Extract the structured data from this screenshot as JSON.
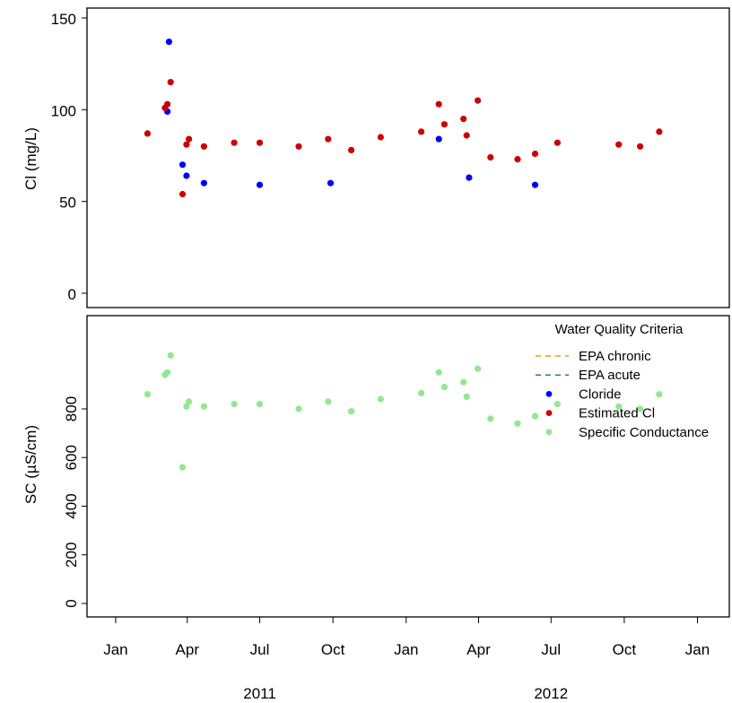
{
  "chart_data": [
    {
      "type": "scatter",
      "ylabel": "Cl (mg/L)",
      "ylim": [
        0,
        150
      ],
      "yticks": [
        0,
        50,
        100,
        150
      ],
      "series": [
        {
          "name": "Cloride",
          "color": "#0000ff",
          "points": [
            [
              "2011-03-07",
              99
            ],
            [
              "2011-03-09",
              137
            ],
            [
              "2011-03-26",
              70
            ],
            [
              "2011-03-31",
              64
            ],
            [
              "2011-04-22",
              60
            ],
            [
              "2011-07-01",
              59
            ],
            [
              "2011-09-28",
              60
            ],
            [
              "2012-02-11",
              84
            ],
            [
              "2012-03-20",
              63
            ],
            [
              "2012-06-11",
              59
            ]
          ]
        },
        {
          "name": "Estimated Cl",
          "color": "#cc0000",
          "points": [
            [
              "2011-02-10",
              87
            ],
            [
              "2011-03-04",
              101
            ],
            [
              "2011-03-07",
              103
            ],
            [
              "2011-03-11",
              115
            ],
            [
              "2011-03-26",
              54
            ],
            [
              "2011-03-31",
              81
            ],
            [
              "2011-04-03",
              84
            ],
            [
              "2011-04-22",
              80
            ],
            [
              "2011-05-30",
              82
            ],
            [
              "2011-07-01",
              82
            ],
            [
              "2011-08-19",
              80
            ],
            [
              "2011-09-25",
              84
            ],
            [
              "2011-10-24",
              78
            ],
            [
              "2011-11-30",
              85
            ],
            [
              "2012-01-20",
              88
            ],
            [
              "2012-02-11",
              103
            ],
            [
              "2012-02-18",
              92
            ],
            [
              "2012-03-13",
              95
            ],
            [
              "2012-03-17",
              86
            ],
            [
              "2012-03-31",
              105
            ],
            [
              "2012-04-16",
              74
            ],
            [
              "2012-05-20",
              73
            ],
            [
              "2012-06-11",
              76
            ],
            [
              "2012-07-09",
              82
            ],
            [
              "2012-09-24",
              81
            ],
            [
              "2012-10-21",
              80
            ],
            [
              "2012-11-14",
              88
            ]
          ]
        }
      ]
    },
    {
      "type": "scatter",
      "ylabel": "SC (µS/cm)",
      "ylim": [
        0,
        1000
      ],
      "yticks": [
        0,
        200,
        400,
        600,
        800
      ],
      "series": [
        {
          "name": "Specific Conductance",
          "color": "#90e890",
          "points": [
            [
              "2011-02-10",
              860
            ],
            [
              "2011-03-04",
              940
            ],
            [
              "2011-03-07",
              950
            ],
            [
              "2011-03-11",
              1020
            ],
            [
              "2011-03-26",
              560
            ],
            [
              "2011-03-31",
              810
            ],
            [
              "2011-04-03",
              830
            ],
            [
              "2011-04-22",
              810
            ],
            [
              "2011-05-30",
              820
            ],
            [
              "2011-07-01",
              820
            ],
            [
              "2011-08-19",
              800
            ],
            [
              "2011-09-25",
              830
            ],
            [
              "2011-10-24",
              790
            ],
            [
              "2011-11-30",
              840
            ],
            [
              "2012-01-20",
              865
            ],
            [
              "2012-02-11",
              950
            ],
            [
              "2012-02-18",
              890
            ],
            [
              "2012-03-13",
              910
            ],
            [
              "2012-03-17",
              850
            ],
            [
              "2012-03-31",
              965
            ],
            [
              "2012-04-16",
              760
            ],
            [
              "2012-05-20",
              740
            ],
            [
              "2012-06-11",
              770
            ],
            [
              "2012-07-09",
              820
            ],
            [
              "2012-09-24",
              810
            ],
            [
              "2012-10-21",
              800
            ],
            [
              "2012-11-14",
              860
            ]
          ]
        }
      ],
      "legend": {
        "title": "Water Quality Criteria",
        "position": "top-right",
        "entries": [
          {
            "label": "EPA chronic",
            "kind": "dashed-line",
            "color": "#f0a000"
          },
          {
            "label": "EPA acute",
            "kind": "dashed-line",
            "color": "#2e8b2e"
          },
          {
            "label": "Cloride",
            "kind": "point",
            "color": "#0000ff"
          },
          {
            "label": "Estimated Cl",
            "kind": "point",
            "color": "#cc0000"
          },
          {
            "label": "Specific Conductance",
            "kind": "point",
            "color": "#90e890"
          }
        ]
      }
    }
  ],
  "x_axis": {
    "range": [
      "2010-11-26",
      "2013-02-10"
    ],
    "ticks": [
      {
        "date": "2011-01-01",
        "label": "Jan"
      },
      {
        "date": "2011-04-01",
        "label": "Apr"
      },
      {
        "date": "2011-07-01",
        "label": "Jul"
      },
      {
        "date": "2011-10-01",
        "label": "Oct"
      },
      {
        "date": "2012-01-01",
        "label": "Jan"
      },
      {
        "date": "2012-04-01",
        "label": "Apr"
      },
      {
        "date": "2012-07-01",
        "label": "Jul"
      },
      {
        "date": "2012-10-01",
        "label": "Oct"
      },
      {
        "date": "2013-01-01",
        "label": "Jan"
      }
    ],
    "year_labels": [
      {
        "label": "2011",
        "date": "2011-07-01"
      },
      {
        "label": "2012",
        "date": "2012-07-01"
      }
    ]
  }
}
